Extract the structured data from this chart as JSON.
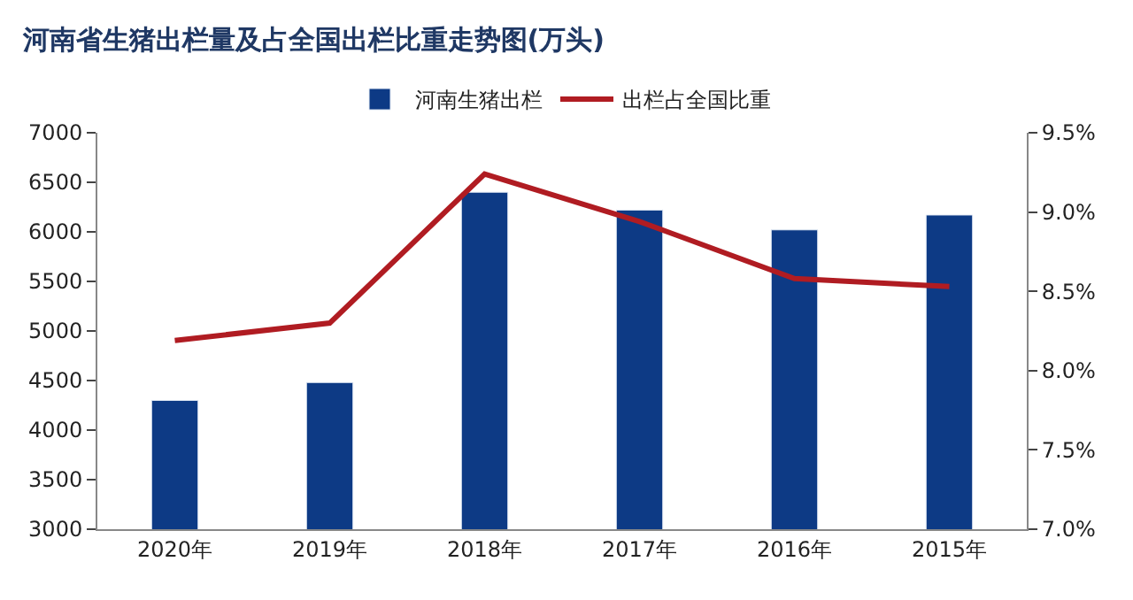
{
  "chart_data": {
    "type": "bar",
    "title": "河南省生猪出栏量及占全国出栏比重走势图(万头)",
    "categories": [
      "2020年",
      "2019年",
      "2018年",
      "2017年",
      "2016年",
      "2015年"
    ],
    "series": [
      {
        "name": "河南生猪出栏",
        "color": "#0d3a85",
        "values": [
          4300,
          4480,
          6400,
          6220,
          6020,
          6170
        ]
      },
      {
        "name": "出栏占全国比重",
        "type": "line",
        "axis": "y2",
        "color": "#b01c22",
        "values": [
          8.19,
          8.3,
          9.24,
          8.94,
          8.58,
          8.53
        ]
      }
    ],
    "ylim": [
      3000,
      7000
    ],
    "yticks": [
      3000,
      3500,
      4000,
      4500,
      5000,
      5500,
      6000,
      6500,
      7000
    ],
    "y2lim": [
      7.0,
      9.5
    ],
    "y2ticks": [
      {
        "value": 7.0,
        "label": "7.0%"
      },
      {
        "value": 7.5,
        "label": "7.5%"
      },
      {
        "value": 8.0,
        "label": "8.0%"
      },
      {
        "value": 8.5,
        "label": "8.5%"
      },
      {
        "value": 9.0,
        "label": "9.0%"
      },
      {
        "value": 9.5,
        "label": "9.5%"
      }
    ],
    "legend": "top",
    "marker": "none"
  }
}
